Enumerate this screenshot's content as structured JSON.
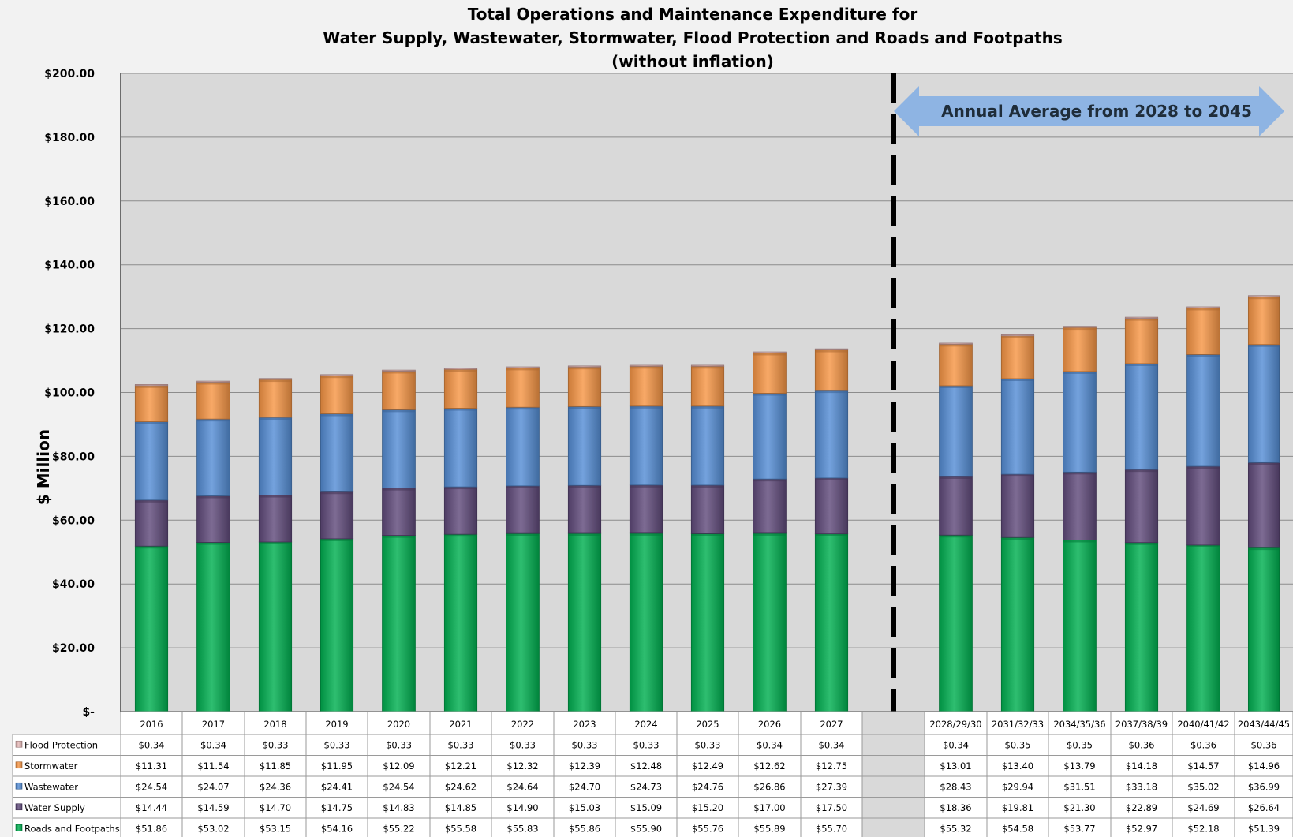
{
  "chart_data": {
    "type": "bar",
    "stacked": true,
    "title": [
      "Total Operations and Maintenance Expenditure for",
      "Water Supply, Wastewater, Stormwater, Flood Protection and Roads and Footpaths",
      "(without inflation)"
    ],
    "ylabel": "$ Million",
    "ylim": [
      0,
      200
    ],
    "yticks": [
      0,
      20,
      40,
      60,
      80,
      100,
      120,
      140,
      160,
      180,
      200
    ],
    "ytick_labels": [
      "$-",
      "$20.00",
      "$40.00",
      "$60.00",
      "$80.00",
      "$100.00",
      "$120.00",
      "$140.00",
      "$160.00",
      "$180.00",
      "$200.00"
    ],
    "grid": true,
    "legend": "data-table",
    "categories": [
      "2016",
      "2017",
      "2018",
      "2019",
      "2020",
      "2021",
      "2022",
      "2023",
      "2024",
      "2025",
      "2026",
      "2027",
      "",
      "2028/29/30",
      "2031/32/33",
      "2034/35/36",
      "2037/38/39",
      "2040/41/42",
      "2043/44/45"
    ],
    "gap_category_index": 12,
    "series": [
      {
        "name": "Roads and Footpaths",
        "color": "#00b050",
        "values": [
          51.86,
          53.02,
          53.15,
          54.16,
          55.22,
          55.58,
          55.83,
          55.86,
          55.9,
          55.76,
          55.89,
          55.7,
          null,
          55.32,
          54.58,
          53.77,
          52.97,
          52.18,
          51.39
        ],
        "labels": [
          "$51.86",
          "$53.02",
          "$53.15",
          "$54.16",
          "$55.22",
          "$55.58",
          "$55.83",
          "$55.86",
          "$55.90",
          "$55.76",
          "$55.89",
          "$55.70",
          "",
          "$55.32",
          "$54.58",
          "$53.77",
          "$52.97",
          "$52.18",
          "$51.39"
        ]
      },
      {
        "name": "Water Supply",
        "color": "#604a7b",
        "values": [
          14.44,
          14.59,
          14.7,
          14.75,
          14.83,
          14.85,
          14.9,
          15.03,
          15.09,
          15.2,
          17.0,
          17.5,
          null,
          18.36,
          19.81,
          21.3,
          22.89,
          24.69,
          26.64
        ],
        "labels": [
          "$14.44",
          "$14.59",
          "$14.70",
          "$14.75",
          "$14.83",
          "$14.85",
          "$14.90",
          "$15.03",
          "$15.09",
          "$15.20",
          "$17.00",
          "$17.50",
          "",
          "$18.36",
          "$19.81",
          "$21.30",
          "$22.89",
          "$24.69",
          "$26.64"
        ]
      },
      {
        "name": "Wastewater",
        "color": "#558ed5",
        "values": [
          24.54,
          24.07,
          24.36,
          24.41,
          24.54,
          24.62,
          24.64,
          24.7,
          24.73,
          24.76,
          26.86,
          27.39,
          null,
          28.43,
          29.94,
          31.51,
          33.18,
          35.02,
          36.99
        ],
        "labels": [
          "$24.54",
          "$24.07",
          "$24.36",
          "$24.41",
          "$24.54",
          "$24.62",
          "$24.64",
          "$24.70",
          "$24.73",
          "$24.76",
          "$26.86",
          "$27.39",
          "",
          "$28.43",
          "$29.94",
          "$31.51",
          "$33.18",
          "$35.02",
          "$36.99"
        ]
      },
      {
        "name": "Stormwater",
        "color": "#f79646",
        "values": [
          11.31,
          11.54,
          11.85,
          11.95,
          12.09,
          12.21,
          12.32,
          12.39,
          12.48,
          12.49,
          12.62,
          12.75,
          null,
          13.01,
          13.4,
          13.79,
          14.18,
          14.57,
          14.96
        ],
        "labels": [
          "$11.31",
          "$11.54",
          "$11.85",
          "$11.95",
          "$12.09",
          "$12.21",
          "$12.32",
          "$12.39",
          "$12.48",
          "$12.49",
          "$12.62",
          "$12.75",
          "",
          "$13.01",
          "$13.40",
          "$13.79",
          "$14.18",
          "$14.57",
          "$14.96"
        ]
      },
      {
        "name": "Flood Protection",
        "color": "#e6b9b8",
        "values": [
          0.34,
          0.34,
          0.33,
          0.33,
          0.33,
          0.33,
          0.33,
          0.33,
          0.33,
          0.33,
          0.34,
          0.34,
          null,
          0.34,
          0.35,
          0.35,
          0.36,
          0.36,
          0.36
        ],
        "labels": [
          "$0.34",
          "$0.34",
          "$0.33",
          "$0.33",
          "$0.33",
          "$0.33",
          "$0.33",
          "$0.33",
          "$0.33",
          "$0.33",
          "$0.34",
          "$0.34",
          "",
          "$0.34",
          "$0.35",
          "$0.35",
          "$0.36",
          "$0.36",
          "$0.36"
        ]
      }
    ],
    "table_row_order": [
      "Flood Protection",
      "Stormwater",
      "Wastewater",
      "Water Supply",
      "Roads and Footpaths"
    ],
    "annotation": {
      "text": "Annual Average from 2028 to 2045",
      "arrow_color": "#8eb4e3",
      "divider_color": "#000000"
    }
  }
}
